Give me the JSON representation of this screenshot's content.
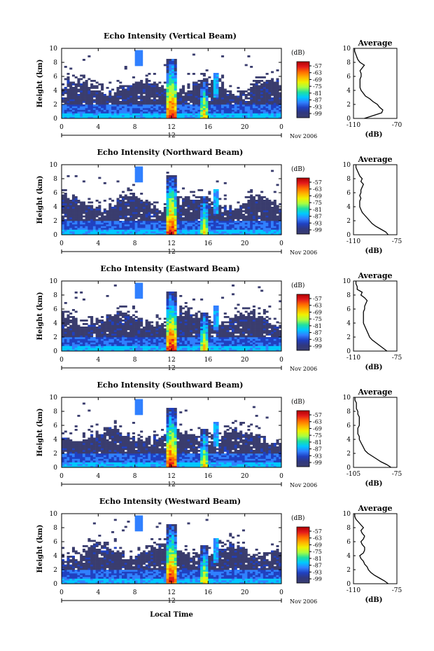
{
  "chart_data": {
    "type": "heatmap",
    "x_axis_label": "Local Time",
    "y_axis_label": "Height (km)",
    "x_ticks": [
      "0",
      "4",
      "8",
      "12",
      "16",
      "20",
      "0"
    ],
    "x_range": [
      0,
      24
    ],
    "y_ticks": [
      "0",
      "2",
      "4",
      "6",
      "8",
      "10"
    ],
    "y_range": [
      0,
      10
    ],
    "date_label": "Nov 2006",
    "center_marker_label": "12",
    "colorbar_unit": "(dB)",
    "colorbar_ticks": [
      "-57",
      "-63",
      "-69",
      "-75",
      "-81",
      "-87",
      "-93",
      "-99"
    ],
    "colorbar_colors": [
      "#b00000",
      "#e31a1c",
      "#ff6a00",
      "#ffb000",
      "#f0f000",
      "#a8ff40",
      "#20e0a0",
      "#00c8ff",
      "#3080ff",
      "#2040c0",
      "#303880",
      "#3a3d6e"
    ],
    "profile_title": "Average",
    "profile_xlabel": "(dB)",
    "panels": [
      {
        "title": "Echo Intensity (Vertical Beam)",
        "profile_xticks": [
          "-110",
          "-70"
        ],
        "profile_xrange": [
          -110,
          -70
        ],
        "profile": [
          [
            -100,
            0
          ],
          [
            -92,
            0.4
          ],
          [
            -84,
            0.8
          ],
          [
            -83,
            1.2
          ],
          [
            -86,
            1.6
          ],
          [
            -88,
            2.0
          ],
          [
            -92,
            2.4
          ],
          [
            -95,
            2.8
          ],
          [
            -99,
            3.2
          ],
          [
            -101,
            3.6
          ],
          [
            -103,
            4.0
          ],
          [
            -104,
            4.4
          ],
          [
            -104,
            4.8
          ],
          [
            -104,
            5.2
          ],
          [
            -104,
            5.6
          ],
          [
            -103,
            6.0
          ],
          [
            -103,
            6.4
          ],
          [
            -104,
            6.8
          ],
          [
            -102,
            7.2
          ],
          [
            -100,
            7.6
          ],
          [
            -104,
            8.0
          ],
          [
            -106,
            8.4
          ],
          [
            -107,
            8.8
          ],
          [
            -108,
            9.2
          ],
          [
            -109,
            9.6
          ],
          [
            -109,
            10.0
          ]
        ]
      },
      {
        "title": "Echo Intensity (Northward Beam)",
        "profile_xticks": [
          "-110",
          "-75"
        ],
        "profile_xrange": [
          -110,
          -75
        ],
        "profile": [
          [
            -82,
            0
          ],
          [
            -84,
            0.4
          ],
          [
            -88,
            0.8
          ],
          [
            -92,
            1.2
          ],
          [
            -95,
            1.6
          ],
          [
            -97,
            2.0
          ],
          [
            -99,
            2.4
          ],
          [
            -101,
            2.8
          ],
          [
            -103,
            3.2
          ],
          [
            -104,
            3.6
          ],
          [
            -105,
            4.0
          ],
          [
            -105,
            4.4
          ],
          [
            -105,
            4.8
          ],
          [
            -104,
            5.2
          ],
          [
            -105,
            5.6
          ],
          [
            -104,
            6.0
          ],
          [
            -104,
            6.4
          ],
          [
            -103,
            6.8
          ],
          [
            -102,
            7.2
          ],
          [
            -104,
            7.6
          ],
          [
            -103,
            8.0
          ],
          [
            -105,
            8.4
          ],
          [
            -106,
            8.8
          ],
          [
            -107,
            9.2
          ],
          [
            -108,
            9.6
          ],
          [
            -108,
            10.0
          ]
        ]
      },
      {
        "title": "Echo Intensity (Eastward Beam)",
        "profile_xticks": [
          "-110",
          "-75"
        ],
        "profile_xrange": [
          -110,
          -75
        ],
        "profile": [
          [
            -83,
            0
          ],
          [
            -86,
            0.4
          ],
          [
            -89,
            0.8
          ],
          [
            -92,
            1.2
          ],
          [
            -95,
            1.6
          ],
          [
            -97,
            2.0
          ],
          [
            -98,
            2.4
          ],
          [
            -99,
            2.8
          ],
          [
            -100,
            3.2
          ],
          [
            -101,
            3.6
          ],
          [
            -102,
            4.0
          ],
          [
            -102,
            4.4
          ],
          [
            -102,
            4.8
          ],
          [
            -102,
            5.2
          ],
          [
            -102,
            5.6
          ],
          [
            -101,
            6.0
          ],
          [
            -101,
            6.4
          ],
          [
            -100,
            6.8
          ],
          [
            -99,
            7.2
          ],
          [
            -101,
            7.6
          ],
          [
            -104,
            8.0
          ],
          [
            -103,
            8.4
          ],
          [
            -107,
            8.8
          ],
          [
            -107,
            9.2
          ],
          [
            -108,
            9.6
          ],
          [
            -108,
            10.0
          ]
        ]
      },
      {
        "title": "Echo Intensity (Southward Beam)",
        "profile_xticks": [
          "-105",
          "-75"
        ],
        "profile_xrange": [
          -105,
          -75
        ],
        "profile": [
          [
            -79,
            0
          ],
          [
            -82,
            0.4
          ],
          [
            -86,
            0.8
          ],
          [
            -89,
            1.2
          ],
          [
            -92,
            1.6
          ],
          [
            -95,
            2.0
          ],
          [
            -97,
            2.4
          ],
          [
            -98,
            2.8
          ],
          [
            -99,
            3.2
          ],
          [
            -100,
            3.6
          ],
          [
            -101,
            4.0
          ],
          [
            -101,
            4.4
          ],
          [
            -102,
            4.8
          ],
          [
            -102,
            5.2
          ],
          [
            -102,
            5.6
          ],
          [
            -101,
            6.0
          ],
          [
            -101,
            6.4
          ],
          [
            -101,
            6.8
          ],
          [
            -101,
            7.2
          ],
          [
            -102,
            7.6
          ],
          [
            -102,
            8.0
          ],
          [
            -103,
            8.4
          ],
          [
            -103,
            8.8
          ],
          [
            -103,
            9.2
          ],
          [
            -104,
            9.6
          ],
          [
            -104,
            10.0
          ]
        ]
      },
      {
        "title": "Echo Intensity (Westward Beam)",
        "profile_xticks": [
          "-110",
          "-75"
        ],
        "profile_xrange": [
          -110,
          -75
        ],
        "profile": [
          [
            -82,
            0
          ],
          [
            -85,
            0.4
          ],
          [
            -89,
            0.8
          ],
          [
            -93,
            1.2
          ],
          [
            -96,
            1.6
          ],
          [
            -98,
            2.0
          ],
          [
            -99,
            2.4
          ],
          [
            -101,
            2.8
          ],
          [
            -102,
            3.2
          ],
          [
            -104,
            3.6
          ],
          [
            -105,
            4.0
          ],
          [
            -102,
            4.4
          ],
          [
            -101,
            4.8
          ],
          [
            -101,
            5.2
          ],
          [
            -103,
            5.6
          ],
          [
            -104,
            6.0
          ],
          [
            -102,
            6.4
          ],
          [
            -101,
            6.8
          ],
          [
            -103,
            7.2
          ],
          [
            -104,
            7.6
          ],
          [
            -102,
            8.0
          ],
          [
            -104,
            8.4
          ],
          [
            -106,
            8.8
          ],
          [
            -108,
            9.2
          ],
          [
            -109,
            9.6
          ],
          [
            -109,
            10.0
          ]
        ]
      }
    ]
  }
}
